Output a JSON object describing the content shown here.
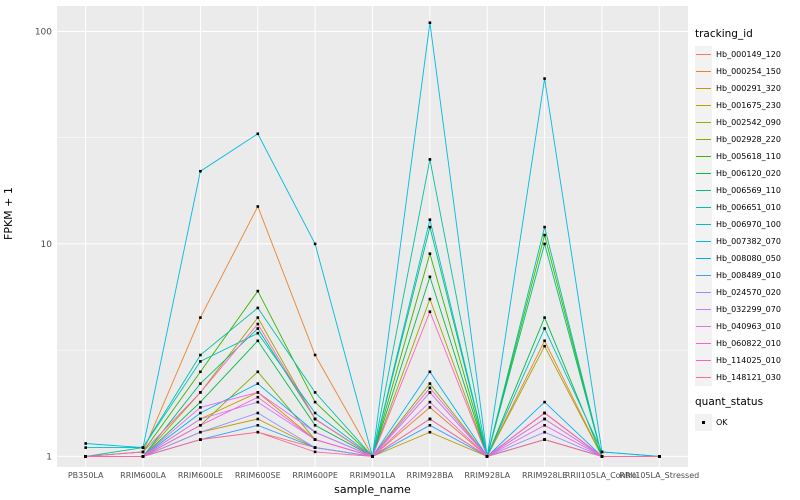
{
  "chart_data": {
    "type": "line",
    "title": "",
    "xlabel": "sample_name",
    "ylabel": "FPKM + 1",
    "y_scale": "log10",
    "ylim": [
      0.9,
      130
    ],
    "y_ticks": [
      1,
      10,
      100
    ],
    "y_minor_ticks": [
      3.162,
      31.62
    ],
    "grid": true,
    "legend_position": "right",
    "panel_background": "#EBEBEB",
    "grid_color": "#FFFFFF",
    "point_color": "#000000",
    "point_shape": "square",
    "categories": [
      "PB350LA",
      "RRIM600LA",
      "RRIM600LE",
      "RRIM600SE",
      "RRIM600PE",
      "RRIM901LA",
      "RRIM928BA",
      "RRIM928LA",
      "RRIM928LE",
      "RRII105LA_Control",
      "RRII105LA_Stressed"
    ],
    "series": [
      {
        "name": "Hb_000149_120",
        "color": "#F8766D",
        "values": [
          1,
          1,
          1.2,
          1.3,
          1.1,
          1,
          1.5,
          1,
          1.2,
          1,
          1
        ]
      },
      {
        "name": "Hb_000254_150",
        "color": "#EA8331",
        "values": [
          1,
          1.05,
          4.5,
          15,
          3,
          1,
          1.7,
          1,
          3.5,
          1,
          1
        ]
      },
      {
        "name": "Hb_000291_320",
        "color": "#D89000",
        "values": [
          1,
          1,
          1.5,
          2,
          1.2,
          1,
          2,
          1,
          1.5,
          1,
          1
        ]
      },
      {
        "name": "Hb_001675_230",
        "color": "#C09B00",
        "values": [
          1,
          1,
          1.3,
          1.5,
          1.1,
          1,
          1.3,
          1,
          1.2,
          1,
          1
        ]
      },
      {
        "name": "Hb_002542_090",
        "color": "#A3A500",
        "values": [
          1,
          1,
          2,
          4.5,
          1.5,
          1,
          5.5,
          1,
          3.3,
          1,
          1
        ]
      },
      {
        "name": "Hb_002928_220",
        "color": "#7CAE00",
        "values": [
          1,
          1,
          1.4,
          2.5,
          1.2,
          1,
          2.2,
          1,
          1.6,
          1,
          1
        ]
      },
      {
        "name": "Hb_005618_110",
        "color": "#39B600",
        "values": [
          1,
          1.05,
          2.5,
          6,
          1.8,
          1,
          9,
          1,
          11,
          1,
          1
        ]
      },
      {
        "name": "Hb_006120_020",
        "color": "#00BB4E",
        "values": [
          1,
          1,
          1.8,
          3.5,
          1.4,
          1,
          7,
          1,
          4.5,
          1,
          1
        ]
      },
      {
        "name": "Hb_006569_110",
        "color": "#00BF7D",
        "values": [
          1,
          1,
          2.2,
          4,
          1.5,
          1,
          12,
          1,
          10,
          1,
          1
        ]
      },
      {
        "name": "Hb_006651_010",
        "color": "#00C1A3",
        "values": [
          1,
          1.1,
          3,
          5,
          2,
          1,
          25,
          1,
          12,
          1,
          1
        ]
      },
      {
        "name": "Hb_006970_100",
        "color": "#00BFC4",
        "values": [
          1.1,
          1.1,
          2.8,
          3.8,
          1.6,
          1,
          13,
          1,
          4,
          1.05,
          1
        ]
      },
      {
        "name": "Hb_007382_070",
        "color": "#00BAE0",
        "values": [
          1.15,
          1.1,
          22,
          33,
          10,
          1,
          110,
          1,
          60,
          1.05,
          1
        ]
      },
      {
        "name": "Hb_008080_050",
        "color": "#00B0F6",
        "values": [
          1,
          1,
          1.6,
          2.2,
          1.3,
          1,
          2.5,
          1,
          1.8,
          1,
          1
        ]
      },
      {
        "name": "Hb_008489_010",
        "color": "#35A2FF",
        "values": [
          1,
          1,
          1.2,
          1.4,
          1.1,
          1,
          1.4,
          1,
          1.2,
          1,
          1
        ]
      },
      {
        "name": "Hb_024570_020",
        "color": "#9590FF",
        "values": [
          1,
          1,
          1.3,
          1.6,
          1.1,
          1,
          1.5,
          1,
          1.3,
          1,
          1
        ]
      },
      {
        "name": "Hb_032299_070",
        "color": "#C77CFF",
        "values": [
          1,
          1,
          1.5,
          1.8,
          1.2,
          1,
          2,
          1,
          1.5,
          1,
          1
        ]
      },
      {
        "name": "Hb_040963_010",
        "color": "#E76BF3",
        "values": [
          1,
          1,
          1.7,
          2,
          1.3,
          1,
          1.8,
          1,
          1.4,
          1,
          1
        ]
      },
      {
        "name": "Hb_060822_010",
        "color": "#FA62DB",
        "values": [
          1,
          1,
          1.4,
          1.9,
          1.2,
          1,
          2.1,
          1,
          1.6,
          1,
          1
        ]
      },
      {
        "name": "Hb_114025_010",
        "color": "#FF62BC",
        "values": [
          1,
          1.05,
          2,
          4.2,
          1.5,
          1,
          4.8,
          1,
          1.6,
          1,
          1
        ]
      },
      {
        "name": "Hb_148121_030",
        "color": "#FF6A98",
        "values": [
          1,
          1,
          1.2,
          1.3,
          1.05,
          1,
          1.5,
          1,
          1.2,
          1,
          1
        ]
      }
    ]
  },
  "legend": {
    "tracking_title": "tracking_id",
    "quant_title": "quant_status",
    "quant_items": [
      {
        "label": "OK"
      }
    ]
  }
}
